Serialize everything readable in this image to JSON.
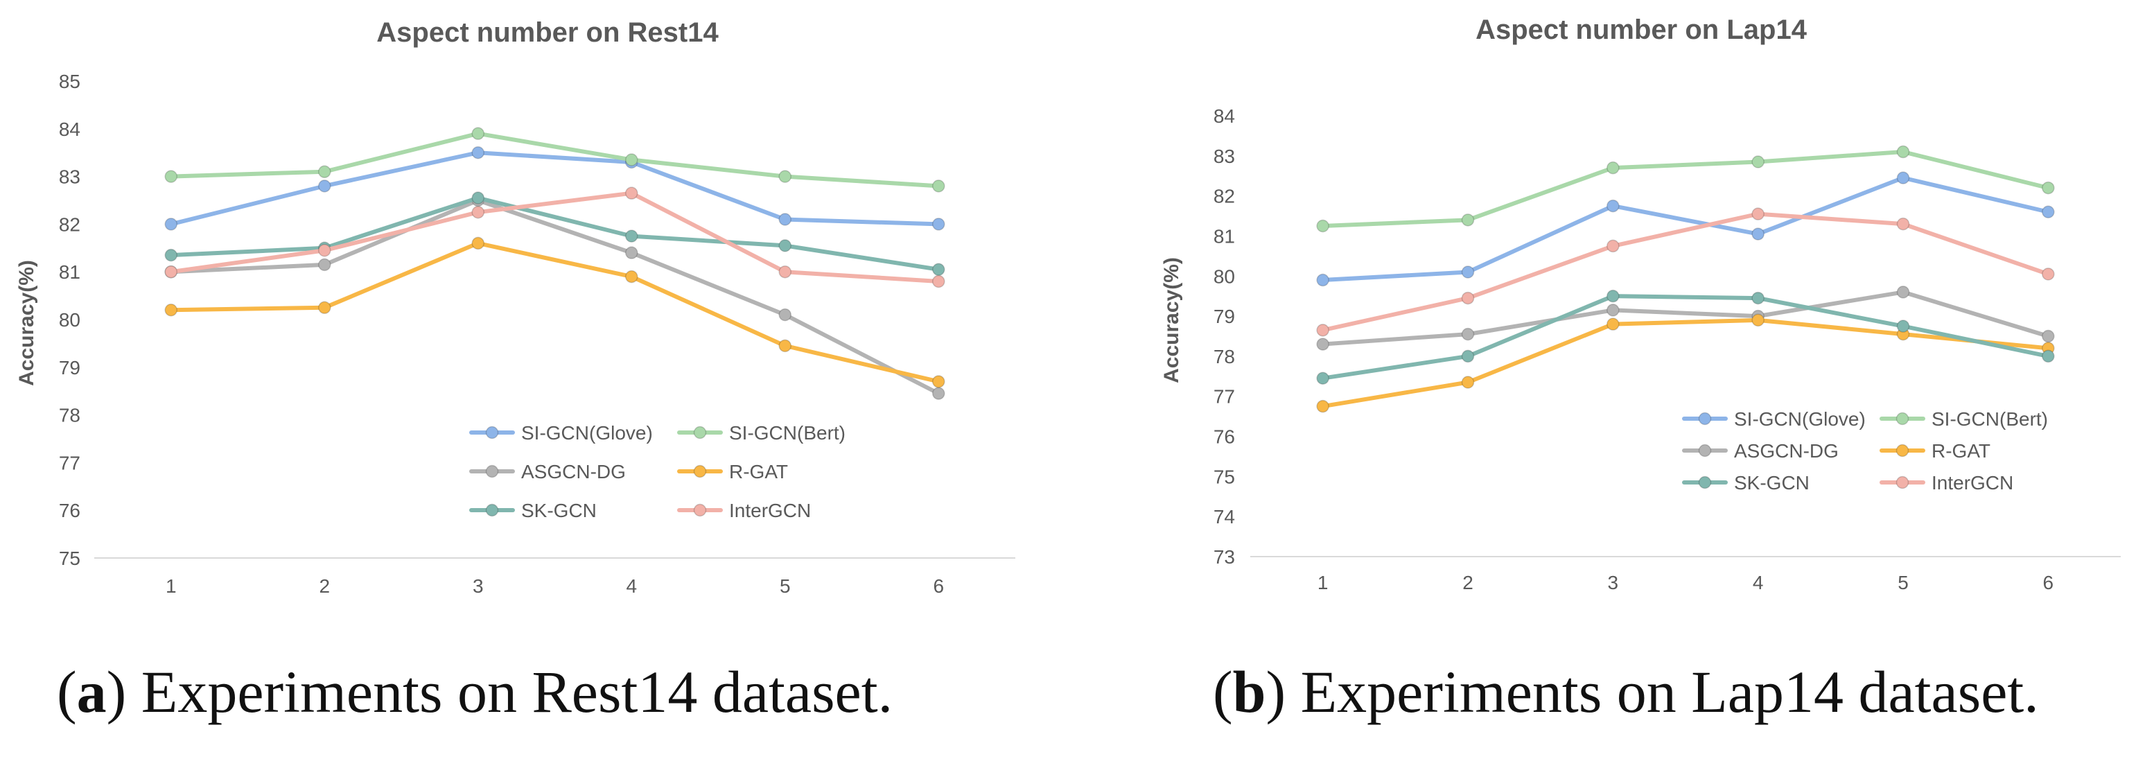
{
  "chart_data": [
    {
      "type": "line",
      "title": "Aspect number on Rest14",
      "xlabel": "",
      "ylabel": "Accuracy(%)",
      "categories": [
        "1",
        "2",
        "3",
        "4",
        "5",
        "6"
      ],
      "ylim": [
        75,
        85
      ],
      "yticks": [
        75,
        76,
        77,
        78,
        79,
        80,
        81,
        82,
        83,
        84,
        85
      ],
      "legend_position": "bottom-right",
      "series": [
        {
          "name": "SI-GCN(Glove)",
          "color": "#8DB4E8",
          "values": [
            82.0,
            82.8,
            83.5,
            83.3,
            82.1,
            82.0
          ]
        },
        {
          "name": "SI-GCN(Bert)",
          "color": "#A9D8A9",
          "values": [
            83.0,
            83.1,
            83.9,
            83.35,
            83.0,
            82.8
          ]
        },
        {
          "name": "ASGCN-DG",
          "color": "#B3B3B3",
          "values": [
            81.0,
            81.15,
            82.5,
            81.4,
            80.1,
            78.45
          ]
        },
        {
          "name": "R-GAT",
          "color": "#F8B746",
          "values": [
            80.2,
            80.25,
            81.6,
            80.9,
            79.45,
            78.7
          ]
        },
        {
          "name": "SK-GCN",
          "color": "#80B6AE",
          "values": [
            81.35,
            81.5,
            82.55,
            81.75,
            81.55,
            81.05
          ]
        },
        {
          "name": "InterGCN",
          "color": "#F2B1A8",
          "values": [
            81.0,
            81.45,
            82.25,
            82.65,
            81.0,
            80.8
          ]
        }
      ]
    },
    {
      "type": "line",
      "title": "Aspect number on Lap14",
      "xlabel": "",
      "ylabel": "Accuracy(%)",
      "categories": [
        "1",
        "2",
        "3",
        "4",
        "5",
        "6"
      ],
      "ylim": [
        73,
        84
      ],
      "yticks": [
        73,
        74,
        75,
        76,
        77,
        78,
        79,
        80,
        81,
        82,
        83,
        84
      ],
      "legend_position": "bottom-right",
      "series": [
        {
          "name": "SI-GCN(Glove)",
          "color": "#8DB4E8",
          "values": [
            79.9,
            80.1,
            81.75,
            81.05,
            82.45,
            81.6
          ]
        },
        {
          "name": "SI-GCN(Bert)",
          "color": "#A9D8A9",
          "values": [
            81.25,
            81.4,
            82.7,
            82.85,
            83.1,
            82.2
          ]
        },
        {
          "name": "ASGCN-DG",
          "color": "#B3B3B3",
          "values": [
            78.3,
            78.55,
            79.15,
            79.0,
            79.6,
            78.5
          ]
        },
        {
          "name": "R-GAT",
          "color": "#F8B746",
          "values": [
            76.75,
            77.35,
            78.8,
            78.9,
            78.55,
            78.2
          ]
        },
        {
          "name": "SK-GCN",
          "color": "#80B6AE",
          "values": [
            77.45,
            78.0,
            79.5,
            79.45,
            78.75,
            78.0
          ]
        },
        {
          "name": "InterGCN",
          "color": "#F2B1A8",
          "values": [
            78.65,
            79.45,
            80.75,
            81.55,
            81.3,
            80.05
          ]
        }
      ]
    }
  ],
  "captions": [
    {
      "letter": "a",
      "text": "Experiments on Rest14 dataset."
    },
    {
      "letter": "b",
      "text": "Experiments on Lap14 dataset."
    }
  ]
}
